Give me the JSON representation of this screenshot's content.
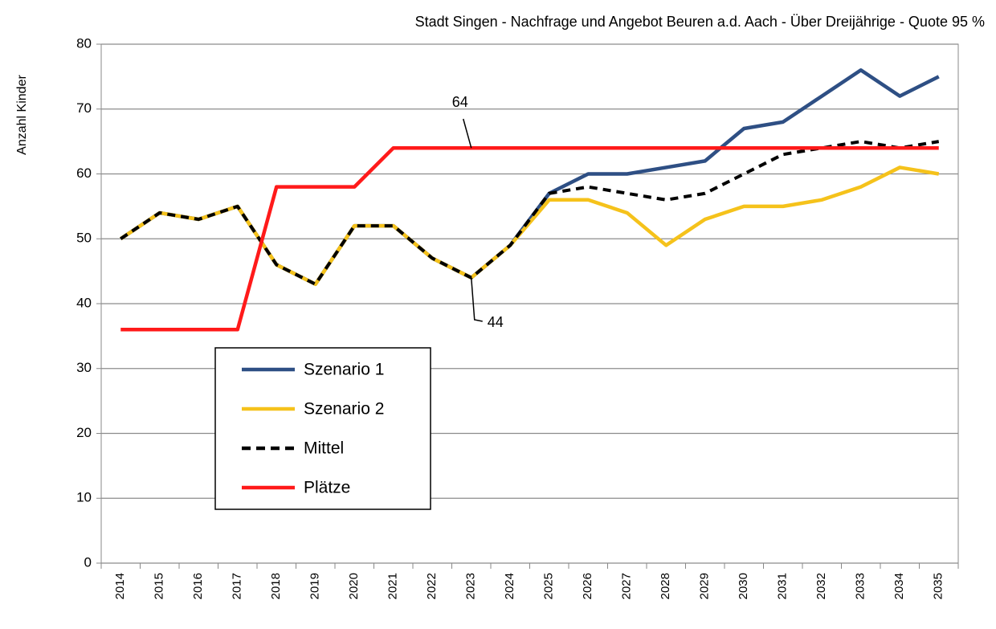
{
  "chart_data": {
    "type": "line",
    "title": "Stadt Singen - Nachfrage und Angebot Beuren a.d. Aach - Über Dreijährige - Quote 95 %",
    "y_label": "Anzahl Kinder",
    "categories": [
      "2014",
      "2015",
      "2016",
      "2017",
      "2018",
      "2019",
      "2020",
      "2021",
      "2022",
      "2023",
      "2024",
      "2025",
      "2026",
      "2027",
      "2028",
      "2029",
      "2030",
      "2031",
      "2032",
      "2033",
      "2034",
      "2035"
    ],
    "series": [
      {
        "name": "Szenario 1",
        "color": "#2e4f84",
        "dash": false,
        "values": [
          50,
          54,
          53,
          55,
          46,
          43,
          52,
          52,
          47,
          44,
          49,
          57,
          60,
          60,
          61,
          62,
          67,
          68,
          72,
          76,
          72,
          75
        ]
      },
      {
        "name": "Szenario 2",
        "color": "#f5c21b",
        "dash": false,
        "values": [
          50,
          54,
          53,
          55,
          46,
          43,
          52,
          52,
          47,
          44,
          49,
          56,
          56,
          54,
          49,
          53,
          55,
          55,
          56,
          58,
          61,
          60
        ]
      },
      {
        "name": "Mittel",
        "color": "#000000",
        "dash": true,
        "values": [
          50,
          54,
          53,
          55,
          46,
          43,
          52,
          52,
          47,
          44,
          49,
          57,
          58,
          57,
          56,
          57,
          60,
          63,
          64,
          65,
          64,
          65
        ]
      },
      {
        "name": "Plätze",
        "color": "#ff1a1a",
        "dash": false,
        "values": [
          36,
          36,
          36,
          36,
          58,
          58,
          58,
          64,
          64,
          64,
          64,
          64,
          64,
          64,
          64,
          64,
          64,
          64,
          64,
          64,
          64,
          64
        ]
      }
    ],
    "annotations": [
      "64",
      "44"
    ],
    "ylim": [
      0,
      80
    ],
    "yticks": [
      0,
      10,
      20,
      30,
      40,
      50,
      60,
      70,
      80
    ],
    "grid": true,
    "legend": "left"
  }
}
